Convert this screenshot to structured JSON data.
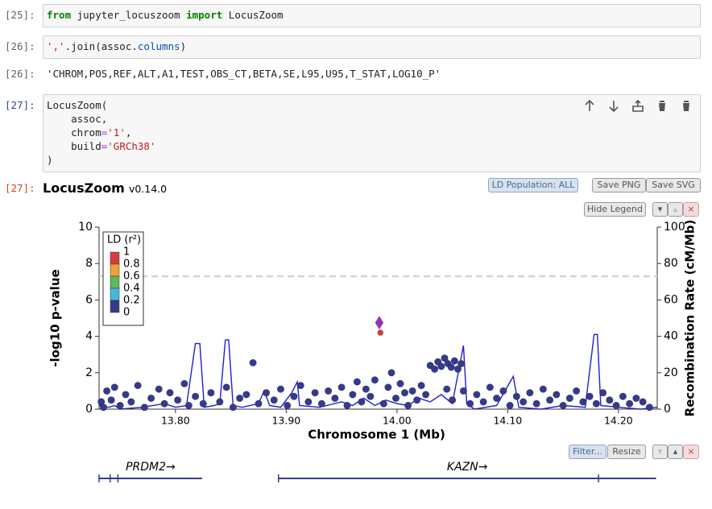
{
  "cells": [
    {
      "prompt": "[25]:",
      "code": [
        [
          "from",
          " jupyter_locuszoom ",
          "import",
          " LocusZoom"
        ]
      ]
    },
    {
      "prompt": "[26]:",
      "code": [
        [
          "','",
          ".join(assoc.",
          "columns",
          ")"
        ]
      ]
    },
    {
      "prompt": "[26]:",
      "output": "'CHROM,POS,REF,ALT,A1,TEST,OBS_CT,BETA,SE,L95,U95,T_STAT,LOG10_P'"
    },
    {
      "prompt": "[27]:",
      "code": [
        [
          "LocusZoom("
        ],
        [
          "    assoc,"
        ],
        [
          "    chrom",
          "=",
          "'1'",
          ","
        ],
        [
          "    build",
          "=",
          "'GRCh38'"
        ],
        [
          ")"
        ]
      ]
    },
    {
      "prompt": "[27]:",
      "title": "LocusZoom",
      "version": "v0.14.0",
      "buttons": {
        "ld_population": "LD Population: ALL",
        "save_png": "Save PNG",
        "save_svg": "Save SVG",
        "hide_legend": "Hide Legend",
        "filter": "Filter...",
        "resize": "Resize"
      },
      "panel_controls": [
        "▾",
        "▴",
        "×"
      ]
    }
  ],
  "chart_data": {
    "type": "scatter",
    "xlabel": "Chromosome 1 (Mb)",
    "ylabel": "-log10 p-value",
    "y2label": "Recombination Rate (cM/Mb)",
    "xlim": [
      13.731,
      14.235
    ],
    "xticks": [
      {
        "value": 13.8,
        "label": "13.80"
      },
      {
        "value": 13.9,
        "label": "13.90"
      },
      {
        "value": 14.0,
        "label": "14.00"
      },
      {
        "value": 14.1,
        "label": "14.10"
      },
      {
        "value": 14.2,
        "label": "14.20"
      }
    ],
    "ylim": [
      0,
      10
    ],
    "yticks": [
      0,
      2,
      4,
      6,
      8,
      10
    ],
    "y2lim": [
      0,
      100
    ],
    "y2ticks": [
      0,
      20,
      40,
      60,
      80,
      100
    ],
    "significance_line": 7.3,
    "series": [
      {
        "color": "#353a8c",
        "marker": "circle",
        "x": [
          13.733,
          13.735,
          13.738,
          13.742,
          13.745,
          13.75,
          13.755,
          13.76,
          13.766,
          13.772,
          13.778,
          13.785,
          13.79,
          13.795,
          13.802,
          13.808,
          13.812,
          13.818,
          13.825,
          13.832,
          13.84,
          13.846,
          13.852,
          13.858,
          13.864,
          13.87,
          13.875,
          13.882,
          13.889,
          13.895,
          13.901,
          13.907,
          13.913,
          13.92,
          13.926,
          13.932,
          13.938,
          13.944,
          13.95,
          13.955,
          13.96,
          13.964,
          13.968,
          13.972,
          13.976,
          13.98,
          13.988,
          13.992,
          13.995,
          13.999,
          14.003,
          14.007,
          14.01,
          14.014,
          14.018,
          14.022,
          14.026,
          14.03,
          14.034,
          14.037,
          14.04,
          14.043,
          14.046,
          14.049,
          14.052,
          14.055,
          14.058,
          14.045,
          14.05,
          14.06,
          14.066,
          14.072,
          14.078,
          14.084,
          14.09,
          14.096,
          14.102,
          14.108,
          14.114,
          14.12,
          14.126,
          14.132,
          14.138,
          14.144,
          14.15,
          14.156,
          14.162,
          14.168,
          14.174,
          14.18,
          14.186,
          14.192,
          14.198,
          14.204,
          14.21,
          14.216,
          14.222,
          14.228
        ],
        "values": [
          0.4,
          0.1,
          1.0,
          0.5,
          1.2,
          0.2,
          0.8,
          0.4,
          1.3,
          0.1,
          0.6,
          1.1,
          0.3,
          0.9,
          0.5,
          1.4,
          0.2,
          0.7,
          0.3,
          0.9,
          0.4,
          1.2,
          0.1,
          0.6,
          0.8,
          2.55,
          0.3,
          0.9,
          0.5,
          1.1,
          0.2,
          0.7,
          1.3,
          0.4,
          0.9,
          0.3,
          1.0,
          0.6,
          1.2,
          0.2,
          0.8,
          1.5,
          0.4,
          1.1,
          0.7,
          1.6,
          0.3,
          1.2,
          2.0,
          0.6,
          1.4,
          0.9,
          0.2,
          1.0,
          0.5,
          1.3,
          0.8,
          2.4,
          2.2,
          2.6,
          2.35,
          2.8,
          2.5,
          2.3,
          2.65,
          2.2,
          2.5,
          1.1,
          0.5,
          1.0,
          0.3,
          0.8,
          0.4,
          1.2,
          0.6,
          1.0,
          0.2,
          0.7,
          0.4,
          0.9,
          0.3,
          1.1,
          0.5,
          0.8,
          0.2,
          0.6,
          1.0,
          0.4,
          0.7,
          0.3,
          0.9,
          0.5,
          0.2,
          0.7,
          0.3,
          0.6,
          0.4,
          0.1
        ]
      },
      {
        "color": "#d43f3a",
        "marker": "circle",
        "x": [
          13.985
        ],
        "values": [
          4.2
        ]
      },
      {
        "color": "#9632b8",
        "marker": "diamond",
        "x": [
          13.984
        ],
        "values": [
          4.75
        ]
      }
    ],
    "recombination": {
      "color": "#1f1fd6",
      "axis": "y2",
      "x": [
        13.731,
        13.74,
        13.745,
        13.75,
        13.77,
        13.79,
        13.8,
        13.81,
        13.818,
        13.822,
        13.826,
        13.835,
        13.84,
        13.845,
        13.848,
        13.852,
        13.86,
        13.875,
        13.88,
        13.885,
        13.895,
        13.905,
        13.91,
        13.912,
        13.93,
        13.95,
        13.96,
        13.97,
        13.98,
        13.99,
        14.0,
        14.01,
        14.02,
        14.03,
        14.04,
        14.05,
        14.06,
        14.063,
        14.07,
        14.09,
        14.105,
        14.11,
        14.13,
        14.15,
        14.17,
        14.178,
        14.181,
        14.184,
        14.2,
        14.22,
        14.235
      ],
      "values": [
        2,
        1,
        2,
        0,
        1,
        3,
        1,
        2,
        36,
        36,
        1,
        2,
        3,
        38,
        38,
        2,
        1,
        3,
        10,
        2,
        1,
        9,
        15,
        2,
        1,
        4,
        2,
        6,
        2,
        5,
        3,
        2,
        6,
        4,
        8,
        3,
        35,
        3,
        0,
        2,
        18,
        1,
        0,
        2,
        1,
        41,
        41,
        2,
        1,
        0,
        1
      ]
    },
    "legend": {
      "title": "LD (r²)",
      "corner": "top-left",
      "thresholds": [
        1,
        0.8,
        0.6,
        0.4,
        0.2,
        0
      ],
      "colors": [
        "#d43f3a",
        "#eea236",
        "#5cb85c",
        "#46b8da",
        "#353a8c"
      ]
    },
    "genes": [
      {
        "name": "PRDM2→",
        "start": 13.731,
        "end": 13.824,
        "exons": [
          13.731,
          13.741,
          13.748
        ]
      },
      {
        "name": "KAZN→",
        "start": 13.893,
        "end": 14.234,
        "exons": [
          13.893,
          14.182
        ]
      }
    ]
  }
}
